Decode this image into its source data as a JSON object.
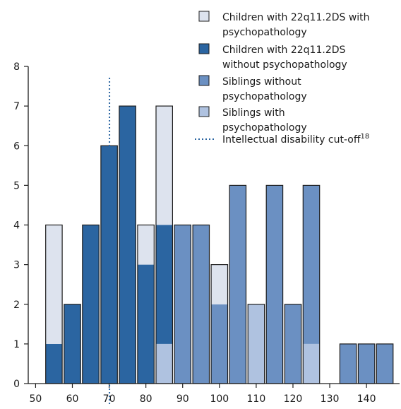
{
  "chart_data": {
    "type": "bar",
    "stacked": true,
    "bin_width": 5,
    "x_ticks": [
      50,
      60,
      70,
      80,
      90,
      100,
      110,
      120,
      130,
      140
    ],
    "y_ticks": [
      0,
      1,
      2,
      3,
      4,
      5,
      6,
      7,
      8
    ],
    "xlim": [
      48,
      149
    ],
    "ylim": [
      0,
      8
    ],
    "grid": false,
    "legend_position": "top-right",
    "cutoff": {
      "x": 70,
      "label": "Intellectual disability cut-off",
      "superscript": "18"
    },
    "series": [
      {
        "name": "Children with 22q11.2DS with psychopathology",
        "legend_lines": [
          "Children with 22q11.2DS with",
          "psychopathology"
        ],
        "color": "#dde3ee"
      },
      {
        "name": "Children with 22q11.2DS without psychopathology",
        "legend_lines": [
          "Children with 22q11.2DS",
          "without psychopathology"
        ],
        "color": "#2b65a1"
      },
      {
        "name": "Siblings without psychopathology",
        "legend_lines": [
          "Siblings without",
          "psychopathology"
        ],
        "color": "#6b90c2"
      },
      {
        "name": "Siblings with psychopathology",
        "legend_lines": [
          "Siblings with",
          "psychopathology"
        ],
        "color": "#afc2e0"
      }
    ],
    "bars": [
      {
        "x": 55,
        "segments": [
          {
            "series": 1,
            "value": 1
          },
          {
            "series": 0,
            "value": 3
          }
        ]
      },
      {
        "x": 60,
        "segments": [
          {
            "series": 1,
            "value": 2
          }
        ]
      },
      {
        "x": 65,
        "segments": [
          {
            "series": 1,
            "value": 4
          }
        ]
      },
      {
        "x": 70,
        "segments": [
          {
            "series": 1,
            "value": 6
          }
        ]
      },
      {
        "x": 75,
        "segments": [
          {
            "series": 1,
            "value": 7
          }
        ]
      },
      {
        "x": 80,
        "segments": [
          {
            "series": 1,
            "value": 3
          },
          {
            "series": 0,
            "value": 1
          }
        ]
      },
      {
        "x": 85,
        "segments": [
          {
            "series": 3,
            "value": 1
          },
          {
            "series": 1,
            "value": 3
          },
          {
            "series": 0,
            "value": 3
          }
        ]
      },
      {
        "x": 90,
        "segments": [
          {
            "series": 2,
            "value": 4
          }
        ]
      },
      {
        "x": 95,
        "segments": [
          {
            "series": 2,
            "value": 4
          }
        ]
      },
      {
        "x": 100,
        "segments": [
          {
            "series": 2,
            "value": 2
          },
          {
            "series": 0,
            "value": 1
          }
        ]
      },
      {
        "x": 105,
        "segments": [
          {
            "series": 2,
            "value": 5
          }
        ]
      },
      {
        "x": 110,
        "segments": [
          {
            "series": 3,
            "value": 2
          }
        ]
      },
      {
        "x": 115,
        "segments": [
          {
            "series": 2,
            "value": 5
          }
        ]
      },
      {
        "x": 120,
        "segments": [
          {
            "series": 2,
            "value": 2
          }
        ]
      },
      {
        "x": 125,
        "segments": [
          {
            "series": 3,
            "value": 1
          },
          {
            "series": 2,
            "value": 4
          }
        ]
      },
      {
        "x": 135,
        "segments": [
          {
            "series": 2,
            "value": 1
          }
        ]
      },
      {
        "x": 140,
        "segments": [
          {
            "series": 2,
            "value": 1
          }
        ]
      },
      {
        "x": 145,
        "segments": [
          {
            "series": 2,
            "value": 1
          }
        ]
      }
    ]
  }
}
